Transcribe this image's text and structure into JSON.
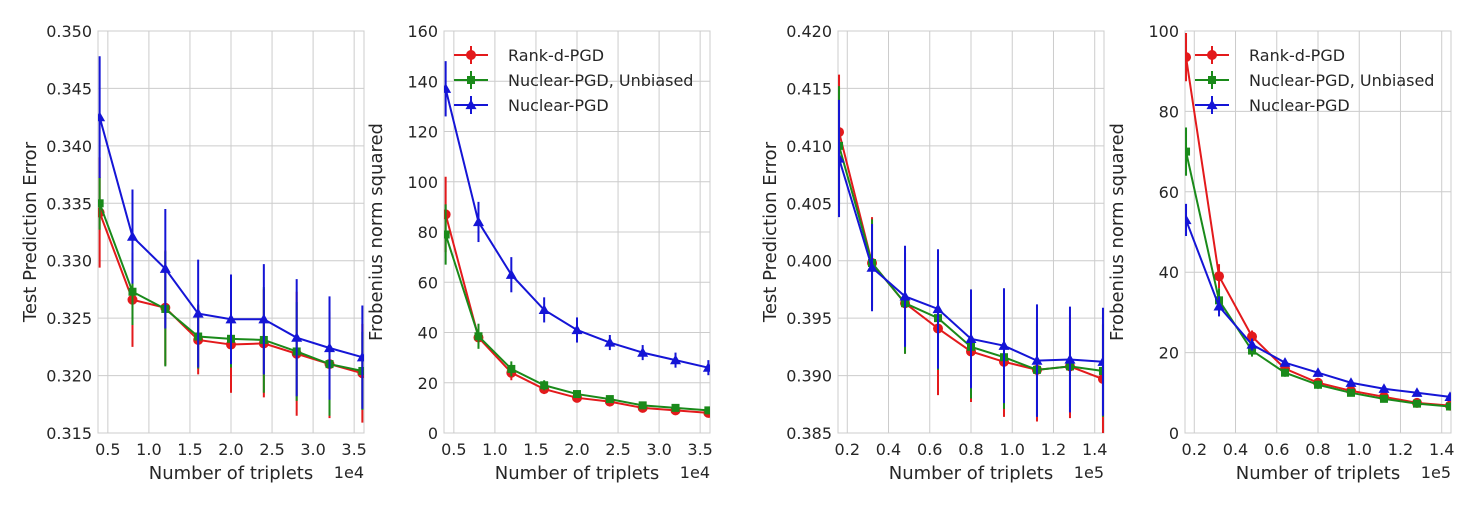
{
  "colors": {
    "Rank-d-PGD": "#e31a1c",
    "Nuclear-PGD, Unbiased": "#1a8a1a",
    "Nuclear-PGD": "#1515d6"
  },
  "chart_data": [
    {
      "type": "line",
      "xlabel": "Number of triplets",
      "ylabel": "Test Prediction Error",
      "x_offset_label": "1e4",
      "xlim": [
        0.38,
        3.62
      ],
      "ylim": [
        0.315,
        0.35
      ],
      "xticks": [
        0.5,
        1.0,
        1.5,
        2.0,
        2.5,
        3.0,
        3.5
      ],
      "xtick_labels": [
        "0.5",
        "1.0",
        "1.5",
        "2.0",
        "2.5",
        "3.0",
        "3.5"
      ],
      "yticks": [
        0.315,
        0.32,
        0.325,
        0.33,
        0.335,
        0.34,
        0.345,
        0.35
      ],
      "ytick_labels": [
        "0.315",
        "0.320",
        "0.325",
        "0.330",
        "0.335",
        "0.340",
        "0.345",
        "0.350"
      ],
      "x": [
        0.4,
        0.8,
        1.2,
        1.6,
        2.0,
        2.4,
        2.8,
        3.2,
        3.6
      ],
      "series": [
        {
          "name": "Rank-d-PGD",
          "marker": "circle",
          "values": [
            0.3342,
            0.3266,
            0.3259,
            0.3231,
            0.3227,
            0.3228,
            0.3219,
            0.321,
            0.3202
          ],
          "err": [
            0.0048,
            0.0041,
            0.005,
            0.003,
            0.0042,
            0.0047,
            0.0054,
            0.0047,
            0.0043
          ]
        },
        {
          "name": "Nuclear-PGD, Unbiased",
          "marker": "square",
          "values": [
            0.335,
            0.3273,
            0.3258,
            0.3234,
            0.3232,
            0.3231,
            0.3221,
            0.321,
            0.3204
          ],
          "err": [
            0.0023,
            0.0029,
            0.005,
            0.0028,
            0.0025,
            0.0046,
            0.0043,
            0.0045,
            0.0034
          ]
        },
        {
          "name": "Nuclear-PGD",
          "marker": "triangle",
          "values": [
            0.3425,
            0.3321,
            0.3293,
            0.3254,
            0.3249,
            0.3249,
            0.3233,
            0.3224,
            0.3216
          ],
          "err": [
            0.0053,
            0.0041,
            0.0052,
            0.0047,
            0.0039,
            0.0048,
            0.0051,
            0.0045,
            0.0045
          ]
        }
      ]
    },
    {
      "type": "line",
      "xlabel": "Number of triplets",
      "ylabel": "Frobenius norm squared",
      "x_offset_label": "1e4",
      "xlim": [
        0.38,
        3.62
      ],
      "ylim": [
        0,
        160
      ],
      "xticks": [
        0.5,
        1.0,
        1.5,
        2.0,
        2.5,
        3.0,
        3.5
      ],
      "xtick_labels": [
        "0.5",
        "1.0",
        "1.5",
        "2.0",
        "2.5",
        "3.0",
        "3.5"
      ],
      "yticks": [
        0,
        20,
        40,
        60,
        80,
        100,
        120,
        140,
        160
      ],
      "ytick_labels": [
        "0",
        "20",
        "40",
        "60",
        "80",
        "100",
        "120",
        "140",
        "160"
      ],
      "legend": "top-right",
      "x": [
        0.4,
        0.8,
        1.2,
        1.6,
        2.0,
        2.4,
        2.8,
        3.2,
        3.6
      ],
      "series": [
        {
          "name": "Rank-d-PGD",
          "marker": "circle",
          "values": [
            87,
            38,
            24,
            17.5,
            14,
            12.5,
            10,
            9,
            8
          ],
          "err": [
            15,
            4,
            3,
            2,
            1.5,
            1.2,
            1,
            1,
            1
          ]
        },
        {
          "name": "Nuclear-PGD, Unbiased",
          "marker": "square",
          "values": [
            79,
            38.5,
            25.5,
            19,
            15.5,
            13.5,
            11,
            10,
            9
          ],
          "err": [
            12,
            5,
            3,
            2,
            1.5,
            1.2,
            1,
            1,
            1
          ]
        },
        {
          "name": "Nuclear-PGD",
          "marker": "triangle",
          "values": [
            137,
            84,
            63,
            49,
            41,
            36,
            32,
            29,
            26
          ],
          "err": [
            11,
            8,
            7,
            5,
            5,
            3,
            3,
            3,
            3
          ]
        }
      ]
    },
    {
      "type": "line",
      "xlabel": "Number of triplets",
      "ylabel": "Test Prediction Error",
      "x_offset_label": "1e5",
      "xlim": [
        0.155,
        1.445
      ],
      "ylim": [
        0.385,
        0.42
      ],
      "xticks": [
        0.2,
        0.4,
        0.6,
        0.8,
        1.0,
        1.2,
        1.4
      ],
      "xtick_labels": [
        "0.2",
        "0.4",
        "0.6",
        "0.8",
        "1.0",
        "1.2",
        "1.4"
      ],
      "yticks": [
        0.385,
        0.39,
        0.395,
        0.4,
        0.405,
        0.41,
        0.415,
        0.42
      ],
      "ytick_labels": [
        "0.385",
        "0.390",
        "0.395",
        "0.400",
        "0.405",
        "0.410",
        "0.415",
        "0.420"
      ],
      "x": [
        0.16,
        0.32,
        0.48,
        0.64,
        0.8,
        0.96,
        1.12,
        1.28,
        1.44
      ],
      "series": [
        {
          "name": "Rank-d-PGD",
          "marker": "circle",
          "values": [
            0.4112,
            0.3998,
            0.3963,
            0.3941,
            0.3921,
            0.3912,
            0.3905,
            0.3908,
            0.3897
          ],
          "err": [
            0.005,
            0.004,
            0.0044,
            0.0058,
            0.0044,
            0.0048,
            0.0045,
            0.0045,
            0.0048
          ]
        },
        {
          "name": "Nuclear-PGD, Unbiased",
          "marker": "square",
          "values": [
            0.41,
            0.3998,
            0.3963,
            0.395,
            0.3925,
            0.3916,
            0.3905,
            0.3908,
            0.3904
          ],
          "err": [
            0.0052,
            0.0038,
            0.0044,
            0.0045,
            0.0045,
            0.0045,
            0.004,
            0.0035,
            0.004
          ]
        },
        {
          "name": "Nuclear-PGD",
          "marker": "triangle",
          "values": [
            0.4089,
            0.3994,
            0.3969,
            0.3958,
            0.3932,
            0.3926,
            0.3913,
            0.3914,
            0.3912
          ],
          "err": [
            0.0051,
            0.0038,
            0.0044,
            0.0052,
            0.0043,
            0.005,
            0.0049,
            0.0046,
            0.0047
          ]
        }
      ]
    },
    {
      "type": "line",
      "xlabel": "Number of triplets",
      "ylabel": "Frobenius norm squared",
      "x_offset_label": "1e5",
      "xlim": [
        0.155,
        1.445
      ],
      "ylim": [
        0,
        100
      ],
      "xticks": [
        0.2,
        0.4,
        0.6,
        0.8,
        1.0,
        1.2,
        1.4
      ],
      "xtick_labels": [
        "0.2",
        "0.4",
        "0.6",
        "0.8",
        "1.0",
        "1.2",
        "1.4"
      ],
      "yticks": [
        0,
        20,
        40,
        60,
        80,
        100
      ],
      "ytick_labels": [
        "0",
        "20",
        "40",
        "60",
        "80",
        "100"
      ],
      "legend": "top-right",
      "x": [
        0.16,
        0.32,
        0.48,
        0.64,
        0.8,
        0.96,
        1.12,
        1.28,
        1.44
      ],
      "series": [
        {
          "name": "Rank-d-PGD",
          "marker": "circle",
          "values": [
            93.5,
            39,
            24,
            16,
            12.5,
            10.5,
            9,
            7.5,
            6.8
          ],
          "err": [
            6,
            3,
            1.5,
            1,
            1,
            0.8,
            0.7,
            0.6,
            0.5
          ]
        },
        {
          "name": "Nuclear-PGD, Unbiased",
          "marker": "square",
          "values": [
            70,
            33,
            20.5,
            15,
            12,
            10,
            8.5,
            7.3,
            6.6
          ],
          "err": [
            6,
            3,
            1.5,
            1,
            1,
            0.8,
            0.7,
            0.6,
            0.5
          ]
        },
        {
          "name": "Nuclear-PGD",
          "marker": "triangle",
          "values": [
            53,
            31.5,
            22,
            17.5,
            15,
            12.5,
            11,
            10,
            9
          ],
          "err": [
            4,
            2.5,
            1.5,
            1,
            1,
            0.8,
            0.7,
            0.6,
            0.5
          ]
        }
      ]
    }
  ]
}
